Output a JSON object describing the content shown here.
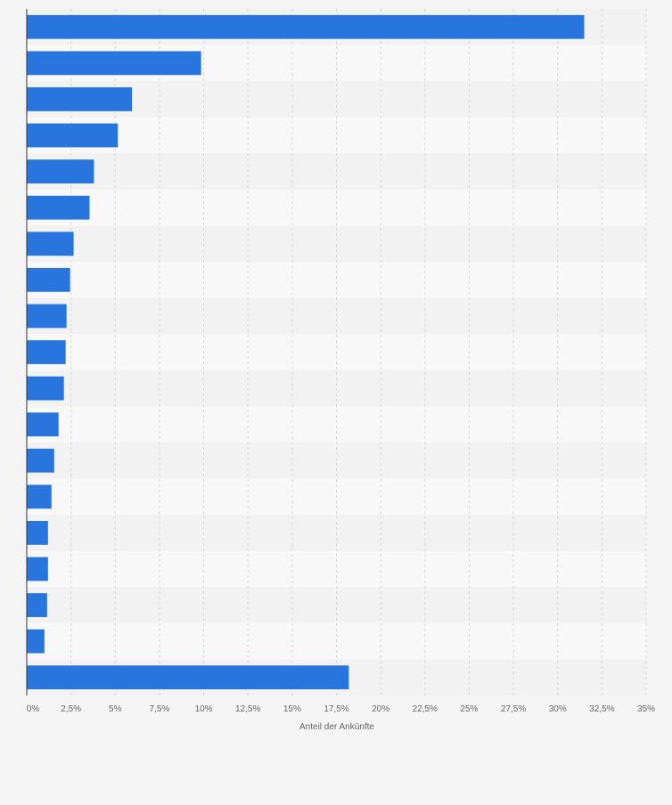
{
  "chart_data": {
    "type": "bar",
    "orientation": "horizontal",
    "categories": [
      "",
      "",
      "",
      "",
      "",
      "",
      "",
      "",
      "",
      "",
      "",
      "",
      "",
      "",
      "",
      "",
      "",
      "",
      ""
    ],
    "values": [
      31.5,
      9.85,
      5.95,
      5.15,
      3.8,
      3.55,
      2.65,
      2.45,
      2.25,
      2.2,
      2.1,
      1.8,
      1.55,
      1.4,
      1.2,
      1.2,
      1.15,
      1.0,
      18.2
    ],
    "xlabel": "Anteil der Ankünfte",
    "xlim": [
      0,
      35
    ],
    "xticks": [
      0,
      2.5,
      5,
      7.5,
      10,
      12.5,
      15,
      17.5,
      20,
      22.5,
      25,
      27.5,
      30,
      32.5,
      35
    ],
    "xtick_labels": [
      "0%",
      "2,5%",
      "5%",
      "7,5%",
      "10%",
      "12,5%",
      "15%",
      "17,5%",
      "20%",
      "22,5%",
      "25%",
      "27,5%",
      "30%",
      "32,5%",
      "35%"
    ],
    "grid": true,
    "legend": "none",
    "bar_color": "#2876dd",
    "band_colors": [
      "#f2f2f2",
      "#f8f8f8"
    ]
  }
}
